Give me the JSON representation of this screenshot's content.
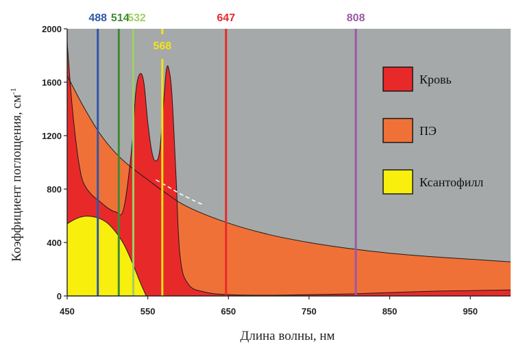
{
  "chart_data": {
    "type": "area",
    "xlabel": "Длина волны, нм",
    "ylabel": "Коэффициент поглощения, см",
    "ylabel_sup": "-1",
    "xlim": [
      450,
      1000
    ],
    "ylim": [
      0,
      2000
    ],
    "x_ticks": [
      450,
      550,
      650,
      750,
      850,
      950
    ],
    "y_ticks": [
      0,
      400,
      800,
      1200,
      1600,
      2000
    ],
    "grid": false,
    "plot_background": "#a5a9a9",
    "legend_position": "right",
    "series": [
      {
        "name": "ПЭ",
        "color": "#f07137",
        "x": [
          450,
          470,
          490,
          510,
          530,
          550,
          570,
          600,
          650,
          700,
          750,
          800,
          850,
          900,
          950,
          1000
        ],
        "y": [
          1650,
          1420,
          1220,
          1070,
          960,
          870,
          780,
          665,
          545,
          460,
          400,
          355,
          320,
          295,
          275,
          255
        ]
      },
      {
        "name": "Кровь",
        "color": "#e8292a",
        "x": [
          450,
          455,
          460,
          465,
          470,
          480,
          490,
          500,
          510,
          520,
          530,
          535,
          540,
          545,
          550,
          555,
          560,
          565,
          570,
          573,
          576,
          580,
          585,
          590,
          600,
          620,
          650,
          700,
          750,
          800,
          850,
          900,
          950,
          1000
        ],
        "y": [
          1900,
          1500,
          1200,
          980,
          850,
          760,
          710,
          660,
          630,
          650,
          1100,
          1520,
          1660,
          1600,
          1300,
          1080,
          1010,
          1100,
          1480,
          1690,
          1700,
          1500,
          900,
          300,
          90,
          30,
          10,
          5,
          10,
          15,
          25,
          35,
          40,
          45
        ]
      },
      {
        "name": "Ксантофилл",
        "color": "#f8ef0e",
        "x": [
          450,
          460,
          470,
          480,
          490,
          500,
          510,
          520,
          530,
          540,
          545,
          548
        ],
        "y": [
          540,
          575,
          595,
          595,
          580,
          545,
          480,
          390,
          260,
          110,
          40,
          0
        ]
      }
    ],
    "laser_lines": [
      {
        "label": "488",
        "x": 488,
        "color": "#2f56a8"
      },
      {
        "label": "514",
        "x": 514,
        "color": "#3f8a35"
      },
      {
        "label": "532",
        "x": 532,
        "color": "#9ed066"
      },
      {
        "label": "568",
        "x": 568,
        "color": "#f2e31c"
      },
      {
        "label": "647",
        "x": 647,
        "color": "#e8292a"
      },
      {
        "label": "808",
        "x": 808,
        "color": "#9a58a6"
      }
    ],
    "dashed_segment": {
      "color": "#ffffff",
      "x": [
        560,
        570,
        580,
        590,
        600,
        610,
        620
      ],
      "y": [
        870,
        835,
        800,
        765,
        735,
        705,
        680
      ]
    }
  }
}
